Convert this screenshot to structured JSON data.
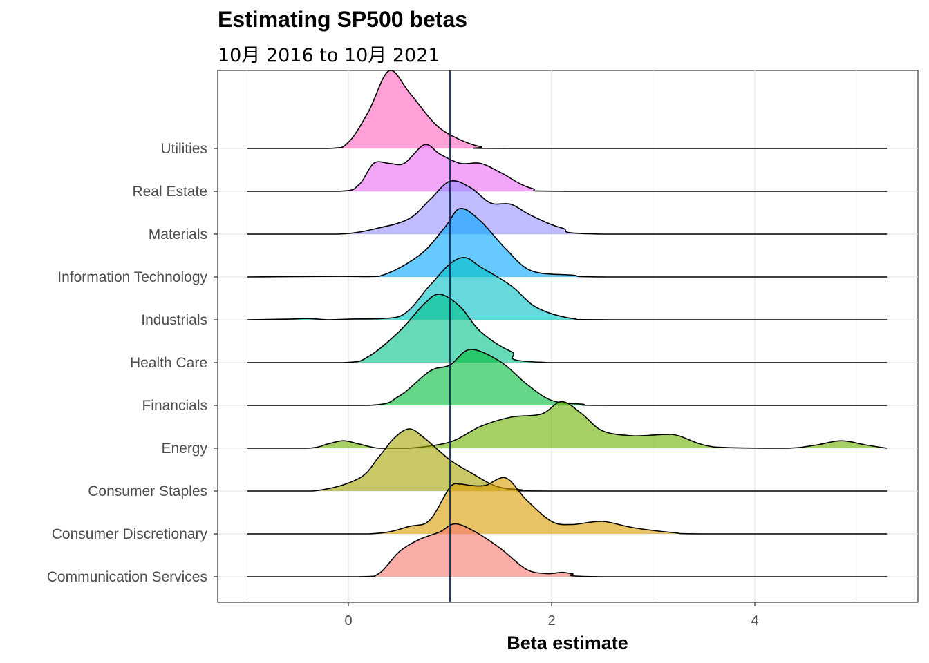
{
  "chart_data": {
    "type": "ridgeline",
    "title": "Estimating SP500 betas",
    "subtitle": "10月 2016 to 10月 2021",
    "xlabel": "Beta estimate",
    "ylabel": "",
    "xlim": [
      -1.3,
      5.6
    ],
    "xticks": [
      0,
      2,
      4
    ],
    "reference_line_x": 1,
    "grid": true,
    "categories": [
      "Communication Services",
      "Consumer Discretionary",
      "Consumer Staples",
      "Energy",
      "Financials",
      "Health Care",
      "Industrials",
      "Information Technology",
      "Materials",
      "Real Estate",
      "Utilities"
    ],
    "series": [
      {
        "category": "Communication Services",
        "color": "#F8766D",
        "density": [
          [
            -1,
            0
          ],
          [
            0.1,
            0
          ],
          [
            0.3,
            0.05
          ],
          [
            0.5,
            0.4
          ],
          [
            0.7,
            0.6
          ],
          [
            0.9,
            0.72
          ],
          [
            1.05,
            0.85
          ],
          [
            1.25,
            0.72
          ],
          [
            1.5,
            0.45
          ],
          [
            1.75,
            0.12
          ],
          [
            1.95,
            0.05
          ],
          [
            2.1,
            0.07
          ],
          [
            2.2,
            0.05
          ],
          [
            2.5,
            0
          ],
          [
            5.3,
            0
          ]
        ]
      },
      {
        "category": "Consumer Discretionary",
        "color": "#DB9D00",
        "density": [
          [
            -1,
            0
          ],
          [
            0.2,
            0
          ],
          [
            0.6,
            0.12
          ],
          [
            0.8,
            0.22
          ],
          [
            1.0,
            0.75
          ],
          [
            1.1,
            0.8
          ],
          [
            1.2,
            0.78
          ],
          [
            1.35,
            0.78
          ],
          [
            1.55,
            0.9
          ],
          [
            1.75,
            0.55
          ],
          [
            2.0,
            0.2
          ],
          [
            2.2,
            0.15
          ],
          [
            2.5,
            0.2
          ],
          [
            2.8,
            0.1
          ],
          [
            3.2,
            0.02
          ],
          [
            3.5,
            0
          ],
          [
            5.3,
            0
          ]
        ]
      },
      {
        "category": "Consumer Staples",
        "color": "#A3A500",
        "density": [
          [
            -1,
            0
          ],
          [
            -0.35,
            0
          ],
          [
            0.1,
            0.2
          ],
          [
            0.3,
            0.55
          ],
          [
            0.45,
            0.85
          ],
          [
            0.6,
            1.0
          ],
          [
            0.75,
            0.85
          ],
          [
            1.0,
            0.5
          ],
          [
            1.2,
            0.3
          ],
          [
            1.45,
            0.08
          ],
          [
            1.7,
            0.02
          ],
          [
            2.0,
            0
          ],
          [
            5.3,
            0
          ]
        ]
      },
      {
        "category": "Energy",
        "color": "#6BB100",
        "density": [
          [
            -1,
            0
          ],
          [
            -0.4,
            0
          ],
          [
            -0.2,
            0.07
          ],
          [
            -0.05,
            0.12
          ],
          [
            0.1,
            0.07
          ],
          [
            0.3,
            0
          ],
          [
            0.6,
            0
          ],
          [
            1.0,
            0.1
          ],
          [
            1.3,
            0.35
          ],
          [
            1.6,
            0.5
          ],
          [
            1.9,
            0.55
          ],
          [
            2.1,
            0.75
          ],
          [
            2.3,
            0.55
          ],
          [
            2.5,
            0.28
          ],
          [
            2.8,
            0.2
          ],
          [
            3.1,
            0.22
          ],
          [
            3.25,
            0.2
          ],
          [
            3.6,
            0.02
          ],
          [
            4.3,
            0
          ],
          [
            4.6,
            0.05
          ],
          [
            4.85,
            0.12
          ],
          [
            5.1,
            0.05
          ],
          [
            5.3,
            0
          ]
        ]
      },
      {
        "category": "Financials",
        "color": "#00BA38",
        "density": [
          [
            -1,
            0
          ],
          [
            0.2,
            0
          ],
          [
            0.5,
            0.15
          ],
          [
            0.8,
            0.55
          ],
          [
            1.0,
            0.65
          ],
          [
            1.2,
            0.9
          ],
          [
            1.5,
            0.7
          ],
          [
            1.75,
            0.35
          ],
          [
            2.0,
            0.08
          ],
          [
            2.3,
            0.02
          ],
          [
            2.6,
            0
          ],
          [
            5.3,
            0
          ]
        ]
      },
      {
        "category": "Health Care",
        "color": "#00C08B",
        "density": [
          [
            -1,
            0
          ],
          [
            -0.05,
            0
          ],
          [
            0.2,
            0.1
          ],
          [
            0.5,
            0.5
          ],
          [
            0.75,
            0.95
          ],
          [
            0.9,
            1.1
          ],
          [
            1.1,
            0.9
          ],
          [
            1.3,
            0.5
          ],
          [
            1.6,
            0.18
          ],
          [
            2.0,
            0
          ],
          [
            5.3,
            0
          ]
        ]
      },
      {
        "category": "Industrials",
        "color": "#00BFC4",
        "density": [
          [
            -1,
            0
          ],
          [
            -0.6,
            0.01
          ],
          [
            -0.4,
            0.02
          ],
          [
            -0.2,
            0
          ],
          [
            0.0,
            0.01
          ],
          [
            0.5,
            0.05
          ],
          [
            0.8,
            0.55
          ],
          [
            1.0,
            0.9
          ],
          [
            1.15,
            1.0
          ],
          [
            1.3,
            0.85
          ],
          [
            1.6,
            0.55
          ],
          [
            1.85,
            0.2
          ],
          [
            2.2,
            0.02
          ],
          [
            2.6,
            0
          ],
          [
            5.3,
            0
          ]
        ]
      },
      {
        "category": "Information Technology",
        "color": "#00A5FF",
        "density": [
          [
            -1,
            0
          ],
          [
            -0.1,
            0.01
          ],
          [
            0.3,
            0.01
          ],
          [
            0.7,
            0.35
          ],
          [
            0.95,
            0.8
          ],
          [
            1.1,
            1.1
          ],
          [
            1.3,
            0.9
          ],
          [
            1.55,
            0.45
          ],
          [
            1.8,
            0.1
          ],
          [
            2.2,
            0.03
          ],
          [
            2.6,
            0
          ],
          [
            5.3,
            0
          ]
        ]
      },
      {
        "category": "Materials",
        "color": "#9590FF",
        "density": [
          [
            -1,
            0
          ],
          [
            -0.1,
            0
          ],
          [
            0.3,
            0.1
          ],
          [
            0.6,
            0.25
          ],
          [
            0.8,
            0.55
          ],
          [
            1.0,
            0.85
          ],
          [
            1.2,
            0.75
          ],
          [
            1.4,
            0.5
          ],
          [
            1.6,
            0.48
          ],
          [
            1.8,
            0.3
          ],
          [
            2.1,
            0.1
          ],
          [
            2.5,
            0
          ],
          [
            5.3,
            0
          ]
        ]
      },
      {
        "category": "Real Estate",
        "color": "#E76BF3",
        "density": [
          [
            -1,
            0
          ],
          [
            -0.1,
            0
          ],
          [
            0.1,
            0.1
          ],
          [
            0.25,
            0.45
          ],
          [
            0.4,
            0.45
          ],
          [
            0.55,
            0.45
          ],
          [
            0.75,
            0.75
          ],
          [
            0.9,
            0.6
          ],
          [
            1.1,
            0.45
          ],
          [
            1.3,
            0.45
          ],
          [
            1.5,
            0.3
          ],
          [
            1.8,
            0.05
          ],
          [
            2.2,
            0
          ],
          [
            5.3,
            0
          ]
        ]
      },
      {
        "category": "Utilities",
        "color": "#FF62BC",
        "density": [
          [
            -1,
            0
          ],
          [
            -0.2,
            0
          ],
          [
            0.0,
            0.1
          ],
          [
            0.2,
            0.6
          ],
          [
            0.4,
            1.25
          ],
          [
            0.6,
            0.9
          ],
          [
            0.85,
            0.4
          ],
          [
            1.05,
            0.18
          ],
          [
            1.3,
            0.03
          ],
          [
            1.6,
            0
          ],
          [
            5.3,
            0
          ]
        ]
      }
    ]
  }
}
